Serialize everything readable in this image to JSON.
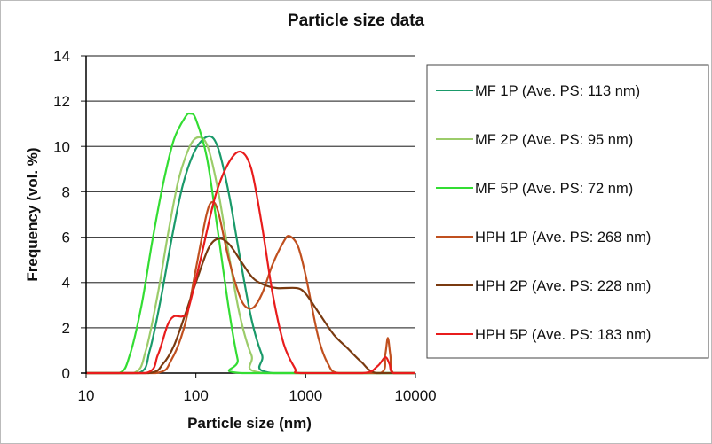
{
  "chart_data": {
    "type": "line",
    "title": "Particle size data",
    "xlabel": "Particle size (nm)",
    "ylabel": "Frequency (vol. %)",
    "xscale": "log",
    "xlim": [
      10,
      10000
    ],
    "ylim": [
      0,
      14
    ],
    "xticks": [
      "10",
      "100",
      "1000",
      "10000"
    ],
    "yticks": [
      "0",
      "2",
      "4",
      "6",
      "8",
      "10",
      "12",
      "14"
    ],
    "grid": "horizontal",
    "legend_position": "right",
    "series": [
      {
        "name": "MF 1P (Ave. PS: 113 nm)",
        "color": "#1a9a6a",
        "points": [
          [
            10,
            0
          ],
          [
            30,
            0
          ],
          [
            38,
            1
          ],
          [
            48,
            3.3
          ],
          [
            60,
            5.9
          ],
          [
            76,
            8.3
          ],
          [
            100,
            9.9
          ],
          [
            132,
            10.45
          ],
          [
            160,
            9.9
          ],
          [
            200,
            7.9
          ],
          [
            250,
            5.2
          ],
          [
            320,
            2.4
          ],
          [
            400,
            0.8
          ],
          [
            500,
            0
          ],
          [
            10000,
            0
          ]
        ]
      },
      {
        "name": "MF 2P (Ave. PS: 95 nm)",
        "color": "#9ccc6a",
        "points": [
          [
            10,
            0
          ],
          [
            27,
            0
          ],
          [
            35,
            1
          ],
          [
            45,
            3.5
          ],
          [
            56,
            6.2
          ],
          [
            70,
            8.6
          ],
          [
            90,
            10.1
          ],
          [
            110,
            10.4
          ],
          [
            130,
            9.9
          ],
          [
            160,
            8
          ],
          [
            200,
            5.2
          ],
          [
            250,
            2.6
          ],
          [
            320,
            0.8
          ],
          [
            420,
            0
          ],
          [
            10000,
            0
          ]
        ]
      },
      {
        "name": "MF 5P (Ave. PS: 72 nm)",
        "color": "#33dd33",
        "points": [
          [
            10,
            0
          ],
          [
            20,
            0
          ],
          [
            25,
            0.8
          ],
          [
            32,
            3
          ],
          [
            40,
            5.8
          ],
          [
            50,
            8.3
          ],
          [
            63,
            10.3
          ],
          [
            80,
            11.3
          ],
          [
            89,
            11.45
          ],
          [
            100,
            11.2
          ],
          [
            126,
            9.5
          ],
          [
            158,
            6.3
          ],
          [
            200,
            2.8
          ],
          [
            240,
            0.6
          ],
          [
            265,
            0
          ],
          [
            10000,
            0
          ]
        ]
      },
      {
        "name": "HPH 1P (Ave. PS: 268 nm)",
        "color": "#c0501f",
        "points": [
          [
            10,
            0
          ],
          [
            43,
            0
          ],
          [
            60,
            0.6
          ],
          [
            80,
            2.2
          ],
          [
            100,
            4.6
          ],
          [
            125,
            7
          ],
          [
            141,
            7.55
          ],
          [
            160,
            7.1
          ],
          [
            200,
            5
          ],
          [
            260,
            3.2
          ],
          [
            325,
            2.86
          ],
          [
            400,
            3.5
          ],
          [
            500,
            4.8
          ],
          [
            630,
            5.8
          ],
          [
            710,
            6.05
          ],
          [
            850,
            5.6
          ],
          [
            1000,
            4.3
          ],
          [
            1300,
            1.6
          ],
          [
            1600,
            0.4
          ],
          [
            2000,
            0
          ],
          [
            4800,
            0
          ],
          [
            5300,
            0.8
          ],
          [
            5600,
            1.55
          ],
          [
            5900,
            0.8
          ],
          [
            6300,
            0
          ],
          [
            10000,
            0
          ]
        ]
      },
      {
        "name": "HPH 2P (Ave. PS: 228 nm)",
        "color": "#7a3a10",
        "points": [
          [
            10,
            0
          ],
          [
            37,
            0
          ],
          [
            50,
            0.4
          ],
          [
            63,
            1.2
          ],
          [
            80,
            2.6
          ],
          [
            100,
            4
          ],
          [
            130,
            5.5
          ],
          [
            160,
            5.93
          ],
          [
            200,
            5.7
          ],
          [
            260,
            4.9
          ],
          [
            330,
            4.2
          ],
          [
            415,
            3.9
          ],
          [
            550,
            3.75
          ],
          [
            830,
            3.75
          ],
          [
            1000,
            3.5
          ],
          [
            1300,
            2.7
          ],
          [
            1800,
            1.7
          ],
          [
            2400,
            1.1
          ],
          [
            3200,
            0.5
          ],
          [
            4400,
            0
          ],
          [
            10000,
            0
          ]
        ]
      },
      {
        "name": "HPH 5P (Ave. PS: 183 nm)",
        "color": "#e81c1c",
        "points": [
          [
            10,
            0
          ],
          [
            35,
            0
          ],
          [
            45,
            0.8
          ],
          [
            55,
            2.1
          ],
          [
            63,
            2.5
          ],
          [
            75,
            2.5
          ],
          [
            85,
            2.8
          ],
          [
            110,
            5
          ],
          [
            150,
            7.8
          ],
          [
            200,
            9.3
          ],
          [
            257,
            9.77
          ],
          [
            320,
            9
          ],
          [
            400,
            6.5
          ],
          [
            500,
            3.5
          ],
          [
            630,
            1.3
          ],
          [
            800,
            0.2
          ],
          [
            900,
            0
          ],
          [
            3300,
            0
          ],
          [
            4500,
            0.3
          ],
          [
            5300,
            0.7
          ],
          [
            5800,
            0.4
          ],
          [
            6300,
            0
          ],
          [
            10000,
            0
          ]
        ]
      }
    ]
  }
}
